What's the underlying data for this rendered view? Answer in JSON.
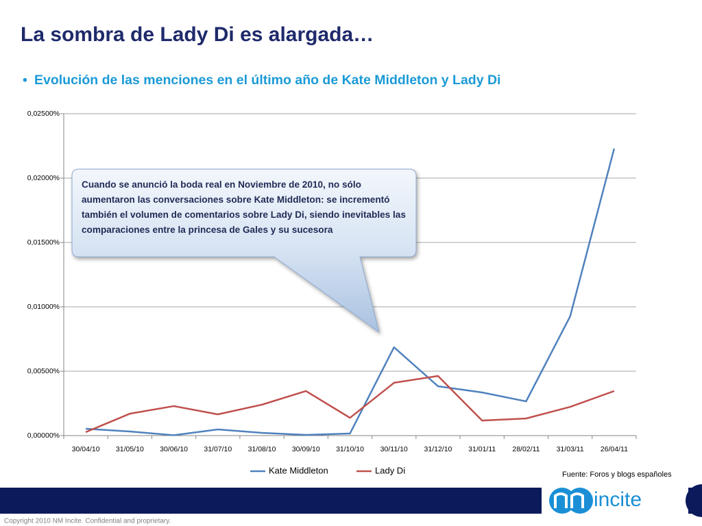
{
  "title": "La sombra de Lady Di es alargada…",
  "subtitle": "Evolución de las menciones en el último año de Kate Middleton y Lady Di",
  "callout": "Cuando se anunció la boda real en Noviembre de 2010, no sólo aumentaron las conversaciones sobre Kate Middleton: se incrementó también el volumen de comentarios sobre Lady Di, siendo inevitables las comparaciones entre la princesa de Gales y su sucesora",
  "source": "Fuente: Foros y blogs españoles",
  "logo": "incite",
  "copyright": "Copyright 2010 NM Incite.  Confidential and proprietary.",
  "chart_data": {
    "type": "line",
    "categories": [
      "30/04/10",
      "31/05/10",
      "30/06/10",
      "31/07/10",
      "31/08/10",
      "30/09/10",
      "31/10/10",
      "30/11/10",
      "31/12/10",
      "31/01/11",
      "28/02/11",
      "31/03/11",
      "26/04/11"
    ],
    "series": [
      {
        "name": "Kate Middleton",
        "color": "#4f81bd",
        "values": [
          0.00053,
          0.00032,
          3e-05,
          0.00048,
          0.00021,
          5e-05,
          0.00016,
          0.00686,
          0.00383,
          0.00335,
          0.00266,
          0.00926,
          0.02229
        ]
      },
      {
        "name": "Lady Di",
        "color": "#c0504d",
        "values": [
          0.00027,
          0.0017,
          0.00229,
          0.00165,
          0.0024,
          0.00346,
          0.00138,
          0.0041,
          0.00463,
          0.00117,
          0.00133,
          0.00223,
          0.00346
        ]
      }
    ],
    "ylim": [
      0,
      0.025
    ],
    "yticks": [
      {
        "value": 0,
        "label": "0,00000%"
      },
      {
        "value": 0.005,
        "label": "0,00500%"
      },
      {
        "value": 0.01,
        "label": "0,01000%"
      },
      {
        "value": 0.015,
        "label": "0,01500%"
      },
      {
        "value": 0.02,
        "label": "0,02000%"
      },
      {
        "value": 0.025,
        "label": "0,02500%"
      }
    ],
    "grid": true,
    "legend": "bottom"
  }
}
